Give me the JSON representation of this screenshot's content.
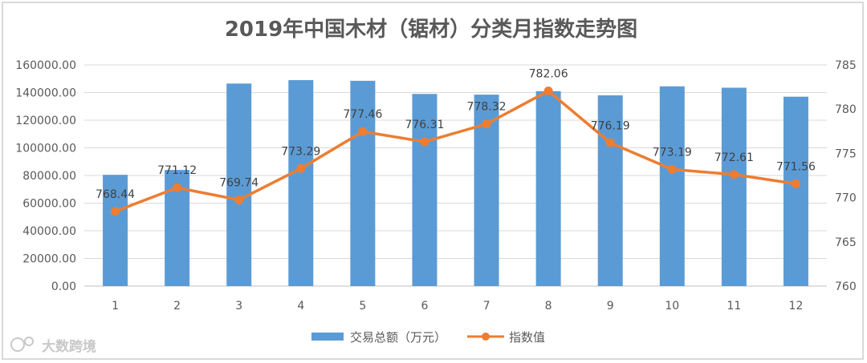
{
  "chart_data": {
    "type": "bar",
    "title": "2019年中国木材（锯材）分类月指数走势图",
    "categories": [
      "1",
      "2",
      "3",
      "4",
      "5",
      "6",
      "7",
      "8",
      "9",
      "10",
      "11",
      "12"
    ],
    "series": [
      {
        "name": "交易总额（万元）",
        "type": "bar",
        "axis": "left",
        "color": "#5b9bd5",
        "values": [
          80500,
          84000,
          146500,
          149000,
          148500,
          139000,
          138500,
          141000,
          138000,
          144500,
          143500,
          137000
        ]
      },
      {
        "name": "指数值",
        "type": "line",
        "axis": "right",
        "color": "#ed7d31",
        "values": [
          768.44,
          771.12,
          769.74,
          773.29,
          777.46,
          776.31,
          778.32,
          782.06,
          776.19,
          773.19,
          772.61,
          771.56
        ],
        "labels": [
          "768.44",
          "771.12",
          "769.74",
          "773.29",
          "777.46",
          "776.31",
          "778.32",
          "782.06",
          "776.19",
          "773.19",
          "772.61",
          "771.56"
        ]
      }
    ],
    "left_axis": {
      "min": 0,
      "max": 160000,
      "step": 20000,
      "tick_labels": [
        "0.00",
        "20000.00",
        "40000.00",
        "60000.00",
        "80000.00",
        "100000.00",
        "120000.00",
        "140000.00",
        "160000.00"
      ]
    },
    "right_axis": {
      "min": 760,
      "max": 785,
      "step": 5,
      "tick_labels": [
        "760",
        "765",
        "770",
        "775",
        "780",
        "785"
      ]
    },
    "grid": true,
    "legend": "bottom"
  },
  "watermark": "大数跨境"
}
